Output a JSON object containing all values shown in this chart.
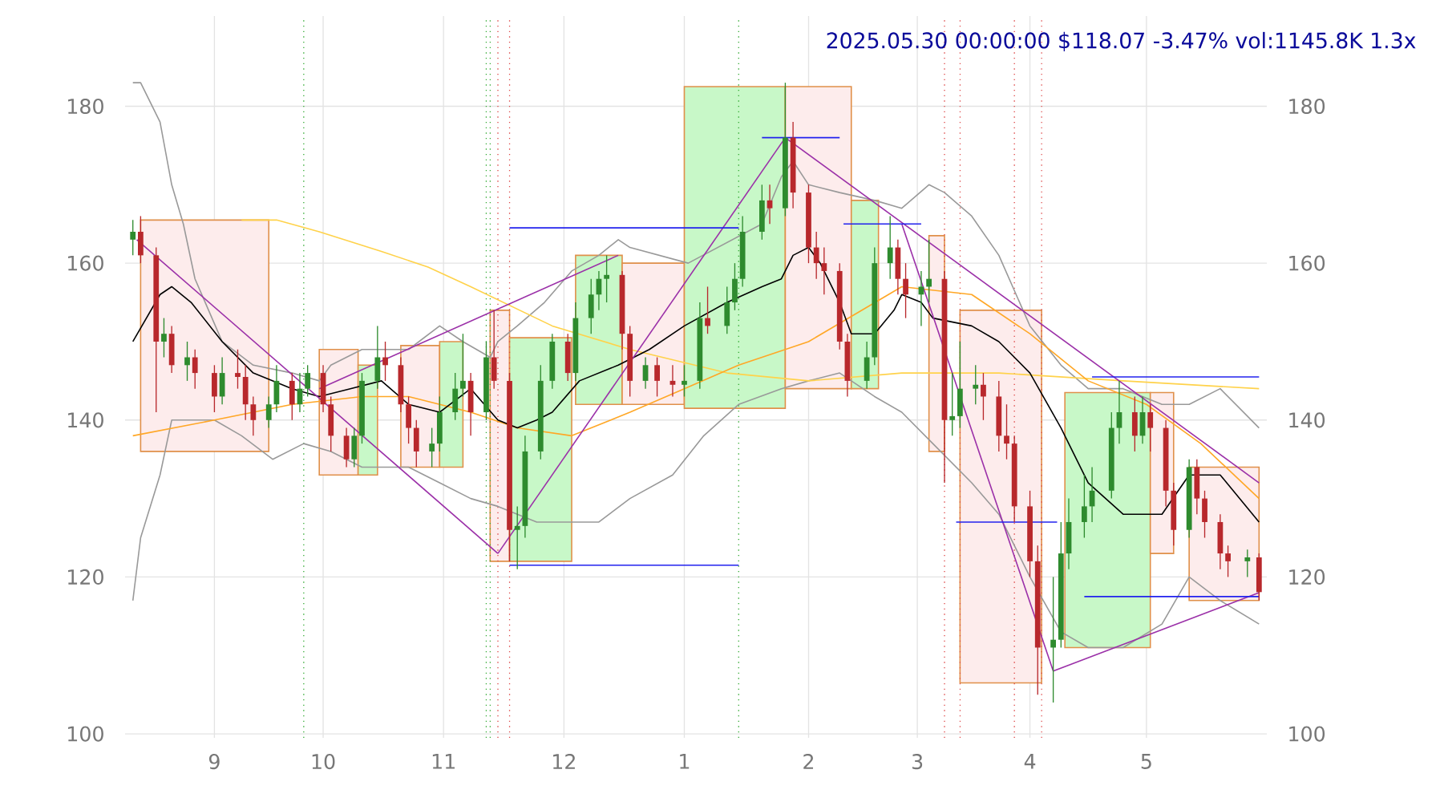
{
  "chart_data": {
    "type": "candlestick",
    "title": "2025.05.30 00:00:00 $118.07 -3.47% vol:1145.8K 1.3x",
    "x": [
      "2024-08-13",
      "2024-08-15",
      "2024-08-19",
      "2024-08-21",
      "2024-08-23",
      "2024-08-27",
      "2024-08-29",
      "2024-09-03",
      "2024-09-05",
      "2024-09-09",
      "2024-09-11",
      "2024-09-13",
      "2024-09-17",
      "2024-09-19",
      "2024-09-23",
      "2024-09-25",
      "2024-09-27",
      "2024-10-01",
      "2024-10-03",
      "2024-10-07",
      "2024-10-09",
      "2024-10-11",
      "2024-10-15",
      "2024-10-17",
      "2024-10-21",
      "2024-10-23",
      "2024-10-25",
      "2024-10-29",
      "2024-10-31",
      "2024-11-04",
      "2024-11-06",
      "2024-11-08",
      "2024-11-12",
      "2024-11-14",
      "2024-11-18",
      "2024-11-20",
      "2024-11-22",
      "2024-11-26",
      "2024-11-29",
      "2024-12-03",
      "2024-12-05",
      "2024-12-09",
      "2024-12-11",
      "2024-12-13",
      "2024-12-17",
      "2024-12-19",
      "2024-12-23",
      "2024-12-26",
      "2024-12-30",
      "2025-01-02",
      "2025-01-06",
      "2025-01-08",
      "2025-01-13",
      "2025-01-15",
      "2025-01-17",
      "2025-01-22",
      "2025-01-24",
      "2025-01-28",
      "2025-01-30",
      "2025-02-03",
      "2025-02-05",
      "2025-02-07",
      "2025-02-11",
      "2025-02-13",
      "2025-02-18",
      "2025-02-20",
      "2025-02-24",
      "2025-02-26",
      "2025-02-28",
      "2025-03-04",
      "2025-03-06",
      "2025-03-10",
      "2025-03-12",
      "2025-03-14",
      "2025-03-18",
      "2025-03-20",
      "2025-03-24",
      "2025-03-26",
      "2025-03-28",
      "2025-04-01",
      "2025-04-03",
      "2025-04-07",
      "2025-04-09",
      "2025-04-11",
      "2025-04-15",
      "2025-04-17",
      "2025-04-22",
      "2025-04-24",
      "2025-04-28",
      "2025-04-30",
      "2025-05-02",
      "2025-05-06",
      "2025-05-08",
      "2025-05-12",
      "2025-05-14",
      "2025-05-16",
      "2025-05-20",
      "2025-05-22",
      "2025-05-27",
      "2025-05-30"
    ],
    "ohlc": [
      [
        163,
        165.5,
        161,
        164
      ],
      [
        164,
        166,
        160,
        161
      ],
      [
        161,
        162,
        141,
        150
      ],
      [
        150,
        153,
        148,
        151
      ],
      [
        151,
        152,
        146,
        147
      ],
      [
        147,
        150,
        145,
        148
      ],
      [
        148,
        149,
        144,
        146
      ],
      [
        146,
        147,
        141,
        143
      ],
      [
        143,
        148,
        142,
        146
      ],
      [
        146,
        149,
        144,
        145.5
      ],
      [
        145.5,
        147,
        140,
        142
      ],
      [
        142,
        143,
        138,
        140
      ],
      [
        140,
        143,
        139,
        142
      ],
      [
        142,
        147,
        141,
        145
      ],
      [
        145,
        146,
        140,
        142
      ],
      [
        142,
        146,
        141,
        144
      ],
      [
        144,
        147,
        143,
        146
      ],
      [
        146,
        147,
        141,
        142
      ],
      [
        142,
        143,
        136,
        138
      ],
      [
        138,
        139,
        134,
        135
      ],
      [
        135,
        139,
        134,
        138
      ],
      [
        138,
        146,
        137,
        145
      ],
      [
        145,
        152,
        144,
        148
      ],
      [
        148,
        150,
        145,
        147
      ],
      [
        147,
        148,
        141,
        142
      ],
      [
        142,
        143,
        137,
        139
      ],
      [
        139,
        140,
        134,
        136
      ],
      [
        136,
        139,
        134,
        137
      ],
      [
        137,
        143,
        136,
        141
      ],
      [
        141,
        146,
        140,
        144
      ],
      [
        144,
        151,
        143,
        145
      ],
      [
        145,
        146,
        138,
        141
      ],
      [
        141,
        150,
        140,
        148
      ],
      [
        148,
        154,
        144,
        145
      ],
      [
        145,
        146,
        122,
        126
      ],
      [
        126,
        129,
        121,
        126.5
      ],
      [
        126.5,
        138,
        125,
        136
      ],
      [
        136,
        147,
        135,
        145
      ],
      [
        145,
        151,
        144,
        150
      ],
      [
        150,
        151,
        145,
        146
      ],
      [
        146,
        155,
        145,
        153
      ],
      [
        153,
        158,
        151,
        156
      ],
      [
        156,
        159,
        154,
        158
      ],
      [
        158,
        161,
        155,
        158.5
      ],
      [
        158.5,
        159,
        149,
        151
      ],
      [
        151,
        152,
        143,
        145
      ],
      [
        145,
        148,
        144,
        147
      ],
      [
        147,
        148,
        143,
        145
      ],
      [
        145,
        147,
        143,
        144.5
      ],
      [
        144.5,
        147,
        143,
        145
      ],
      [
        145,
        155,
        144,
        153
      ],
      [
        153,
        157,
        151,
        152
      ],
      [
        152,
        157,
        151,
        155
      ],
      [
        155,
        160,
        154,
        158
      ],
      [
        158,
        166,
        157,
        164
      ],
      [
        164,
        170,
        163,
        168
      ],
      [
        168,
        170,
        165,
        167
      ],
      [
        167,
        183,
        166,
        176
      ],
      [
        176,
        178,
        167,
        169
      ],
      [
        169,
        170,
        160,
        162
      ],
      [
        162,
        164,
        158,
        160
      ],
      [
        160,
        162,
        156,
        159
      ],
      [
        159,
        160,
        149,
        150
      ],
      [
        150,
        151,
        143,
        145
      ],
      [
        145,
        150,
        144,
        148
      ],
      [
        148,
        162,
        147,
        160
      ],
      [
        160,
        166,
        158,
        162
      ],
      [
        162,
        163,
        156,
        158
      ],
      [
        158,
        160,
        153,
        156
      ],
      [
        156,
        159,
        152,
        157
      ],
      [
        157,
        163,
        155,
        158
      ],
      [
        158,
        159,
        132,
        140
      ],
      [
        140,
        146,
        138,
        140.5
      ],
      [
        140.5,
        150,
        139,
        144
      ],
      [
        144,
        147,
        142,
        144.5
      ],
      [
        144.5,
        146,
        140,
        143
      ],
      [
        143,
        145,
        136,
        138
      ],
      [
        138,
        142,
        135,
        137
      ],
      [
        137,
        138,
        127,
        129
      ],
      [
        129,
        131,
        120,
        122
      ],
      [
        122,
        124,
        105,
        111
      ],
      [
        111,
        120,
        104,
        112
      ],
      [
        112,
        127,
        111,
        123
      ],
      [
        123,
        130,
        121,
        127
      ],
      [
        127,
        133,
        125,
        129
      ],
      [
        129,
        134,
        127,
        131
      ],
      [
        131,
        141,
        130,
        139
      ],
      [
        139,
        145,
        137,
        141
      ],
      [
        141,
        143,
        136,
        138
      ],
      [
        138,
        143,
        137,
        141
      ],
      [
        141,
        142,
        136,
        139
      ],
      [
        139,
        140,
        129,
        131
      ],
      [
        131,
        132,
        124,
        126
      ],
      [
        126,
        135,
        125,
        134
      ],
      [
        134,
        135,
        128,
        130
      ],
      [
        130,
        131,
        125,
        127
      ],
      [
        127,
        128,
        121,
        123
      ],
      [
        123,
        124,
        120,
        122
      ],
      [
        122,
        123.5,
        120,
        122.5
      ],
      [
        122.5,
        123,
        117,
        118.07
      ]
    ],
    "colors": [
      "#2e8b2e",
      "#b8282c",
      "#b8282c",
      "#2e8b2e",
      "#b8282c",
      "#2e8b2e",
      "#b8282c",
      "#b8282c",
      "#2e8b2e",
      "#b8282c",
      "#b8282c",
      "#b8282c",
      "#2e8b2e",
      "#2e8b2e",
      "#b8282c",
      "#2e8b2e",
      "#2e8b2e",
      "#b8282c",
      "#b8282c",
      "#b8282c",
      "#2e8b2e",
      "#2e8b2e",
      "#2e8b2e",
      "#b8282c",
      "#b8282c",
      "#b8282c",
      "#b8282c",
      "#2e8b2e",
      "#2e8b2e",
      "#2e8b2e",
      "#2e8b2e",
      "#b8282c",
      "#2e8b2e",
      "#b8282c",
      "#b8282c",
      "#2e8b2e",
      "#2e8b2e",
      "#2e8b2e",
      "#2e8b2e",
      "#b8282c",
      "#2e8b2e",
      "#2e8b2e",
      "#2e8b2e",
      "#2e8b2e",
      "#b8282c",
      "#b8282c",
      "#2e8b2e",
      "#b8282c",
      "#b8282c",
      "#2e8b2e",
      "#2e8b2e",
      "#b8282c",
      "#2e8b2e",
      "#2e8b2e",
      "#2e8b2e",
      "#2e8b2e",
      "#b8282c",
      "#2e8b2e",
      "#b8282c",
      "#b8282c",
      "#b8282c",
      "#b8282c",
      "#b8282c",
      "#b8282c",
      "#2e8b2e",
      "#2e8b2e",
      "#2e8b2e",
      "#b8282c",
      "#b8282c",
      "#2e8b2e",
      "#2e8b2e",
      "#b8282c",
      "#2e8b2e",
      "#2e8b2e",
      "#2e8b2e",
      "#b8282c",
      "#b8282c",
      "#b8282c",
      "#b8282c",
      "#b8282c",
      "#b8282c",
      "#2e8b2e",
      "#2e8b2e",
      "#2e8b2e",
      "#2e8b2e",
      "#2e8b2e",
      "#2e8b2e",
      "#2e8b2e",
      "#b8282c",
      "#2e8b2e",
      "#b8282c",
      "#b8282c",
      "#b8282c",
      "#2e8b2e",
      "#b8282c",
      "#b8282c",
      "#b8282c",
      "#b8282c",
      "#2e8b2e",
      "#b8282c"
    ],
    "series": [
      {
        "type": "line",
        "color": "#fdecec",
        "x": [
          "2024-08-15",
          "2024-09-17"
        ],
        "values": [
          null,
          null
        ],
        "lower": [
          136,
          136
        ],
        "upper": [
          165.5,
          165.5
        ]
      },
      {
        "type": "line",
        "color": "#fdecec",
        "x": [
          "2024-09-30",
          "2024-10-10"
        ],
        "values": [
          null,
          null
        ],
        "lower": [
          133,
          133
        ],
        "upper": [
          149,
          149
        ]
      },
      {
        "type": "line",
        "color": "#c8f8c8",
        "x": [
          "2024-10-10",
          "2024-10-15"
        ],
        "values": [
          null,
          null
        ],
        "lower": [
          133,
          133
        ],
        "upper": [
          147,
          147
        ]
      },
      {
        "type": "line",
        "color": "#fdecec",
        "x": [
          "2024-10-21",
          "2024-10-31"
        ],
        "values": [
          null,
          null
        ],
        "lower": [
          134,
          134
        ],
        "upper": [
          149.5,
          149.5
        ]
      },
      {
        "type": "line",
        "color": "#c8f8c8",
        "x": [
          "2024-10-31",
          "2024-11-06"
        ],
        "values": [
          null,
          null
        ],
        "lower": [
          134,
          134
        ],
        "upper": [
          150,
          150
        ]
      },
      {
        "type": "line",
        "color": "#fdecec",
        "x": [
          "2024-11-13",
          "2024-11-18"
        ],
        "values": [
          null,
          null
        ],
        "lower": [
          122,
          122
        ],
        "upper": [
          154,
          154
        ]
      },
      {
        "type": "line",
        "color": "#c8f8c8",
        "x": [
          "2024-11-18",
          "2024-12-04"
        ],
        "values": [
          null,
          null
        ],
        "lower": [
          122,
          122
        ],
        "upper": [
          150.5,
          150.5
        ]
      },
      {
        "type": "line",
        "color": "#c8f8c8",
        "x": [
          "2024-12-05",
          "2024-12-17"
        ],
        "values": [
          null,
          null
        ],
        "lower": [
          142,
          142
        ],
        "upper": [
          161,
          161
        ]
      },
      {
        "type": "line",
        "color": "#fdecec",
        "x": [
          "2024-12-17",
          "2025-01-02"
        ],
        "values": [
          null,
          null
        ],
        "lower": [
          142,
          142
        ],
        "upper": [
          160,
          160
        ]
      },
      {
        "type": "line",
        "color": "#c8f8c8",
        "x": [
          "2025-01-02",
          "2025-01-28"
        ],
        "values": [
          null,
          null
        ],
        "lower": [
          141.5,
          141.5
        ],
        "upper": [
          182.5,
          182.5
        ]
      },
      {
        "type": "line",
        "color": "#fdecec",
        "x": [
          "2025-01-28",
          "2025-02-14"
        ],
        "values": [
          null,
          null
        ],
        "lower": [
          144,
          144
        ],
        "upper": [
          182.5,
          182.5
        ]
      },
      {
        "type": "line",
        "color": "#c8f8c8",
        "x": [
          "2025-02-14",
          "2025-02-21"
        ],
        "values": [
          null,
          null
        ],
        "lower": [
          144,
          144
        ],
        "upper": [
          168,
          168
        ]
      },
      {
        "type": "line",
        "color": "#fdecec",
        "x": [
          "2025-03-06",
          "2025-03-10"
        ],
        "values": [
          null,
          null
        ],
        "lower": [
          136,
          136
        ],
        "upper": [
          163.5,
          163.5
        ]
      },
      {
        "type": "line",
        "color": "#fdecec",
        "x": [
          "2025-03-14",
          "2025-04-04"
        ],
        "values": [
          null,
          null
        ],
        "lower": [
          106.5,
          106.5
        ],
        "upper": [
          154,
          154
        ]
      },
      {
        "type": "line",
        "color": "#c8f8c8",
        "x": [
          "2025-04-10",
          "2025-05-02"
        ],
        "values": [
          null,
          null
        ],
        "lower": [
          111,
          111
        ],
        "upper": [
          143.5,
          143.5
        ]
      },
      {
        "type": "line",
        "color": "#fdecec",
        "x": [
          "2025-05-02",
          "2025-05-08"
        ],
        "values": [
          null,
          null
        ],
        "lower": [
          123,
          123
        ],
        "upper": [
          143.5,
          143.5
        ]
      },
      {
        "type": "line",
        "color": "#fdecec",
        "x": [
          "2025-05-12",
          "2025-05-30"
        ],
        "values": [
          null,
          null
        ],
        "lower": [
          117,
          117
        ],
        "upper": [
          134,
          134
        ]
      },
      {
        "type": "line",
        "color": "#999999",
        "x": [
          "2024-08-13",
          "2024-08-15",
          "2024-08-20",
          "2024-08-23",
          "2024-08-26",
          "2024-08-29",
          "2024-09-05",
          "2024-09-13",
          "2024-09-23",
          "2024-09-30",
          "2024-10-03",
          "2024-10-11",
          "2024-10-23",
          "2024-10-31",
          "2024-11-06",
          "2024-11-13",
          "2024-11-15",
          "2024-11-20",
          "2024-11-27",
          "2024-12-04",
          "2024-12-11",
          "2024-12-16",
          "2024-12-19",
          "2025-01-03",
          "2025-01-22",
          "2025-01-27",
          "2025-01-30",
          "2025-02-03",
          "2025-02-11",
          "2025-02-20",
          "2025-02-27",
          "2025-03-06",
          "2025-03-10",
          "2025-03-17",
          "2025-03-24",
          "2025-04-01",
          "2025-04-09",
          "2025-04-16",
          "2025-04-25",
          "2025-05-05",
          "2025-05-12",
          "2025-05-20",
          "2025-05-30"
        ],
        "values": [
          183,
          183,
          178,
          170,
          165,
          158,
          150,
          147,
          146,
          145,
          147,
          149,
          149,
          152,
          150,
          148,
          150,
          152,
          155,
          159,
          161,
          163,
          162,
          160,
          165,
          171,
          173,
          170,
          169,
          168,
          167,
          170,
          169,
          166,
          161,
          152,
          147,
          144,
          144,
          142,
          142,
          144,
          139
        ]
      },
      {
        "type": "line",
        "color": "#999999",
        "x": [
          "2024-08-13",
          "2024-08-15",
          "2024-08-20",
          "2024-08-23",
          "2024-09-03",
          "2024-09-10",
          "2024-09-18",
          "2024-09-26",
          "2024-10-03",
          "2024-10-11",
          "2024-10-23",
          "2024-10-31",
          "2024-11-08",
          "2024-11-15",
          "2024-11-25",
          "2024-12-04",
          "2024-12-11",
          "2024-12-19",
          "2024-12-30",
          "2025-01-07",
          "2025-01-16",
          "2025-01-27",
          "2025-02-03",
          "2025-02-11",
          "2025-02-20",
          "2025-02-27",
          "2025-03-07",
          "2025-03-17",
          "2025-03-24",
          "2025-04-01",
          "2025-04-09",
          "2025-04-16",
          "2025-04-25",
          "2025-05-05",
          "2025-05-12",
          "2025-05-20",
          "2025-05-30"
        ],
        "values": [
          117,
          125,
          133,
          140,
          140,
          138,
          135,
          137,
          136,
          134,
          134,
          132,
          130,
          129,
          127,
          127,
          127,
          130,
          133,
          138,
          142,
          144,
          145,
          146,
          143,
          141,
          137,
          132,
          128,
          120,
          113,
          111,
          111,
          114,
          120,
          117,
          114
        ]
      },
      {
        "type": "line",
        "color": "#ffd24a",
        "x": [
          "2024-09-10",
          "2024-09-19",
          "2024-09-30",
          "2024-10-16",
          "2024-10-28",
          "2024-11-08",
          "2024-11-29",
          "2024-12-19",
          "2025-01-13",
          "2025-02-03",
          "2025-02-27",
          "2025-03-24",
          "2025-04-25",
          "2025-05-30"
        ],
        "values": [
          165.5,
          165.5,
          164,
          161.5,
          159.5,
          157,
          152,
          149,
          146,
          145,
          146,
          146,
          145,
          144
        ]
      },
      {
        "type": "line",
        "color": "#ffa726",
        "x": [
          "2024-08-13",
          "2024-09-03",
          "2024-09-23",
          "2024-10-11",
          "2024-10-23",
          "2024-11-08",
          "2024-11-20",
          "2024-12-04",
          "2024-12-19",
          "2025-01-02",
          "2025-01-16",
          "2025-02-03",
          "2025-02-27",
          "2025-03-17",
          "2025-04-01",
          "2025-04-16",
          "2025-05-01",
          "2025-05-15",
          "2025-05-30"
        ],
        "values": [
          138,
          140,
          142,
          143,
          143,
          141,
          139,
          138,
          141,
          144,
          147,
          150,
          157,
          156,
          151,
          145,
          142,
          137,
          130
        ]
      },
      {
        "type": "line",
        "color": "#000000",
        "x": [
          "2024-08-13",
          "2024-08-20",
          "2024-08-23",
          "2024-08-28",
          "2024-09-05",
          "2024-09-13",
          "2024-09-23",
          "2024-09-30",
          "2024-10-08",
          "2024-10-16",
          "2024-10-23",
          "2024-10-31",
          "2024-11-08",
          "2024-11-15",
          "2024-11-20",
          "2024-11-25",
          "2024-11-29",
          "2024-12-06",
          "2024-12-16",
          "2024-12-24",
          "2025-01-02",
          "2025-01-13",
          "2025-01-22",
          "2025-01-27",
          "2025-01-30",
          "2025-02-03",
          "2025-02-06",
          "2025-02-11",
          "2025-02-14",
          "2025-02-20",
          "2025-02-25",
          "2025-02-27",
          "2025-03-04",
          "2025-03-07",
          "2025-03-17",
          "2025-03-24",
          "2025-04-01",
          "2025-04-09",
          "2025-04-16",
          "2025-04-25",
          "2025-05-05",
          "2025-05-12",
          "2025-05-20",
          "2025-05-30"
        ],
        "values": [
          150,
          156,
          157,
          155,
          150,
          146,
          144,
          143,
          144,
          145,
          142,
          141,
          144,
          140,
          139,
          140,
          141,
          145,
          147,
          149,
          152,
          155,
          157,
          158,
          161,
          162,
          160,
          155,
          151,
          151,
          154,
          156,
          155,
          153,
          152,
          150,
          146,
          139,
          132,
          128,
          128,
          133,
          133,
          127
        ]
      },
      {
        "type": "line",
        "color": "#9b30a8",
        "x": [
          "2024-08-14",
          "2024-11-15"
        ],
        "values": [
          163,
          123
        ]
      },
      {
        "type": "line",
        "color": "#9b30a8",
        "x": [
          "2024-11-15",
          "2025-01-28"
        ],
        "values": [
          123,
          176
        ]
      },
      {
        "type": "line",
        "color": "#9b30a8",
        "x": [
          "2024-09-30",
          "2024-12-16"
        ],
        "values": [
          144,
          161
        ]
      },
      {
        "type": "line",
        "color": "#9b30a8",
        "x": [
          "2025-01-28",
          "2025-05-30"
        ],
        "values": [
          176,
          132
        ]
      },
      {
        "type": "line",
        "color": "#9b30a8",
        "x": [
          "2025-02-27",
          "2025-04-07"
        ],
        "values": [
          165,
          108
        ]
      },
      {
        "type": "line",
        "color": "#9b30a8",
        "x": [
          "2025-04-07",
          "2025-05-30"
        ],
        "values": [
          108,
          118
        ]
      },
      {
        "type": "line",
        "color": "#2222ee",
        "x": [
          "2024-11-18",
          "2025-01-16"
        ],
        "values": [
          121.5,
          121.5
        ]
      },
      {
        "type": "line",
        "color": "#2222ee",
        "x": [
          "2024-11-18",
          "2025-01-16"
        ],
        "values": [
          164.5,
          164.5
        ]
      },
      {
        "type": "line",
        "color": "#2222ee",
        "x": [
          "2025-01-22",
          "2025-02-11"
        ],
        "values": [
          176,
          176
        ]
      },
      {
        "type": "line",
        "color": "#2222ee",
        "x": [
          "2025-02-12",
          "2025-03-04"
        ],
        "values": [
          165,
          165
        ]
      },
      {
        "type": "line",
        "color": "#2222ee",
        "x": [
          "2025-03-13",
          "2025-04-08"
        ],
        "values": [
          127,
          127
        ]
      },
      {
        "type": "line",
        "color": "#2222ee",
        "x": [
          "2025-04-15",
          "2025-05-30"
        ],
        "values": [
          117.5,
          117.5
        ]
      },
      {
        "type": "line",
        "color": "#2222ee",
        "x": [
          "2025-04-17",
          "2025-05-30"
        ],
        "values": [
          145.5,
          145.5
        ]
      }
    ],
    "ref_lines": [
      {
        "axis": "x",
        "value": "2024-09-26",
        "color": "#33aa33",
        "line_style": "dotted"
      },
      {
        "axis": "x",
        "value": "2024-11-12",
        "color": "#33aa33",
        "line_style": "dotted"
      },
      {
        "axis": "x",
        "value": "2024-11-13",
        "color": "#33aa33",
        "line_style": "dotted"
      },
      {
        "axis": "x",
        "value": "2024-11-15",
        "color": "#dd4444",
        "line_style": "dotted"
      },
      {
        "axis": "x",
        "value": "2024-11-18",
        "color": "#dd4444",
        "line_style": "dotted"
      },
      {
        "axis": "x",
        "value": "2025-01-16",
        "color": "#33aa33",
        "line_style": "dotted"
      },
      {
        "axis": "x",
        "value": "2025-03-10",
        "color": "#dd4444",
        "line_style": "dotted"
      },
      {
        "axis": "x",
        "value": "2025-03-14",
        "color": "#dd4444",
        "line_style": "dotted"
      },
      {
        "axis": "x",
        "value": "2025-03-28",
        "color": "#dd4444",
        "line_style": "dotted"
      },
      {
        "axis": "x",
        "value": "2025-04-04",
        "color": "#dd4444",
        "line_style": "dotted"
      }
    ],
    "xlim": [
      "2024-08-11",
      "2025-06-01"
    ],
    "xticks": [
      {
        "value": "2024-09-03",
        "label": "9"
      },
      {
        "value": "2024-10-01",
        "label": "10"
      },
      {
        "value": "2024-11-01",
        "label": "11"
      },
      {
        "value": "2024-12-02",
        "label": "12"
      },
      {
        "value": "2025-01-02",
        "label": "1"
      },
      {
        "value": "2025-02-03",
        "label": "2"
      },
      {
        "value": "2025-03-03",
        "label": "3"
      },
      {
        "value": "2025-04-01",
        "label": "4"
      },
      {
        "value": "2025-05-01",
        "label": "5"
      }
    ],
    "ylim": [
      99.5,
      191.5
    ],
    "yticks": [
      100,
      120,
      140,
      160,
      180
    ],
    "y2lim": [
      99.5,
      191.5
    ],
    "y2ticks": [
      100,
      120,
      140,
      160,
      180
    ],
    "grid": true,
    "marker": "none"
  }
}
